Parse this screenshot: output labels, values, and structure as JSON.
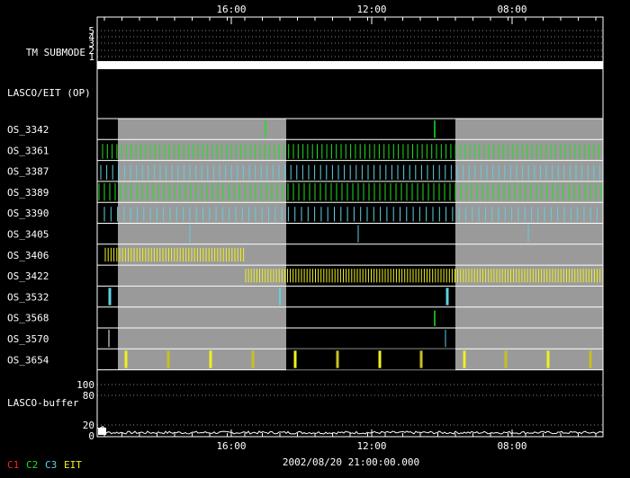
{
  "chart_data": {
    "type": "timeline",
    "title": "",
    "date_label": "2002/08/20 21:00:00.000",
    "time_ticks": [
      "16:00",
      "12:00",
      "08:00"
    ],
    "tm_submode": {
      "label": "TM SUBMODE",
      "levels": [
        "5",
        "4",
        "3",
        "2",
        "1"
      ],
      "active_level": "1"
    },
    "section_label": "LASCO/EIT (OP)",
    "rows": [
      {
        "name": "OS_3342",
        "gray_bg": true
      },
      {
        "name": "OS_3361",
        "gray_bg": true
      },
      {
        "name": "OS_3387",
        "gray_bg": true
      },
      {
        "name": "OS_3389",
        "gray_bg": true
      },
      {
        "name": "OS_3390",
        "gray_bg": true
      },
      {
        "name": "OS_3405",
        "gray_bg": true
      },
      {
        "name": "OS_3406",
        "gray_bg": true
      },
      {
        "name": "OS_3422",
        "gray_bg": true
      },
      {
        "name": "OS_3532",
        "gray_bg": true
      },
      {
        "name": "OS_3568",
        "gray_bg": true
      },
      {
        "name": "OS_3570",
        "gray_bg": true
      },
      {
        "name": "OS_3654",
        "gray_bg": true
      }
    ],
    "buffer": {
      "label": "LASCO-buffer",
      "ticks": [
        "100",
        "80",
        "20",
        "0"
      ]
    },
    "legend": [
      {
        "name": "C1",
        "color": "#ff2020"
      },
      {
        "name": "C2",
        "color": "#20e020"
      },
      {
        "name": "C3",
        "color": "#60d0e0"
      },
      {
        "name": "EIT",
        "color": "#f0f020"
      }
    ],
    "colors": {
      "c2": "#20e020",
      "c3": "#60d0e0",
      "eit": "#f0f020",
      "eit_dim": "#c8c020",
      "gray": "#9a9a9a"
    }
  }
}
